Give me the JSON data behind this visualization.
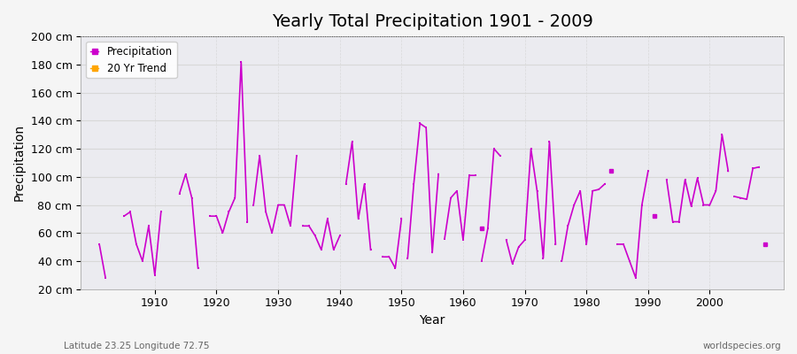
{
  "title": "Yearly Total Precipitation 1901 - 2009",
  "xlabel": "Year",
  "ylabel": "Precipitation",
  "subtitle": "Latitude 23.25 Longitude 72.75",
  "watermark": "worldspecies.org",
  "years": [
    1901,
    1902,
    1903,
    1904,
    1905,
    1906,
    1907,
    1908,
    1909,
    1910,
    1911,
    1912,
    1913,
    1914,
    1915,
    1916,
    1917,
    1918,
    1919,
    1920,
    1921,
    1922,
    1923,
    1924,
    1925,
    1926,
    1927,
    1928,
    1929,
    1930,
    1931,
    1932,
    1933,
    1934,
    1935,
    1936,
    1937,
    1938,
    1939,
    1940,
    1941,
    1942,
    1943,
    1944,
    1945,
    1946,
    1947,
    1948,
    1949,
    1950,
    1951,
    1952,
    1953,
    1954,
    1955,
    1956,
    1957,
    1958,
    1959,
    1960,
    1961,
    1962,
    1963,
    1964,
    1965,
    1966,
    1967,
    1968,
    1969,
    1970,
    1971,
    1972,
    1973,
    1974,
    1975,
    1976,
    1977,
    1978,
    1979,
    1980,
    1981,
    1982,
    1983,
    1984,
    1985,
    1986,
    1987,
    1988,
    1989,
    1990,
    1991,
    1992,
    1993,
    1994,
    1995,
    1996,
    1997,
    1998,
    1999,
    2000,
    2001,
    2002,
    2003,
    2004,
    2005,
    2006,
    2007,
    2008,
    2009
  ],
  "precip": [
    52,
    null,
    null,
    null,
    null,
    null,
    null,
    null,
    null,
    null,
    75,
    null,
    null,
    null,
    102,
    null,
    null,
    null,
    null,
    null,
    null,
    null,
    null,
    182,
    null,
    null,
    null,
    null,
    null,
    null,
    null,
    null,
    115,
    null,
    null,
    null,
    null,
    null,
    null,
    null,
    null,
    125,
    null,
    null,
    47,
    null,
    null,
    null,
    null,
    null,
    null,
    null,
    138,
    135,
    null,
    null,
    null,
    null,
    null,
    null,
    101,
    null,
    null,
    null,
    null,
    null,
    null,
    null,
    null,
    null,
    null,
    null,
    125,
    null,
    null,
    null,
    null,
    null,
    null,
    null,
    null,
    null,
    104,
    null,
    null,
    null,
    null,
    null,
    null,
    null,
    null,
    null,
    null,
    null,
    null,
    null,
    null,
    null,
    null,
    null,
    null,
    130,
    null,
    null,
    null,
    null,
    107,
    null,
    null,
    52
  ],
  "precip_connected": [
    [
      1901,
      52
    ],
    [
      1902,
      null
    ],
    [
      1903,
      null
    ],
    [
      1904,
      null
    ],
    [
      1905,
      72
    ],
    [
      1906,
      75
    ],
    [
      1907,
      null
    ],
    [
      1908,
      null
    ],
    [
      1909,
      null
    ],
    [
      1910,
      30
    ],
    [
      1911,
      75
    ],
    [
      1912,
      null
    ],
    [
      1913,
      null
    ],
    [
      1914,
      null
    ],
    [
      1915,
      102
    ],
    [
      1916,
      85
    ],
    [
      1917,
      null
    ],
    [
      1918,
      null
    ],
    [
      1919,
      null
    ],
    [
      1920,
      null
    ],
    [
      1921,
      null
    ],
    [
      1922,
      null
    ],
    [
      1923,
      85
    ],
    [
      1924,
      182
    ],
    [
      1925,
      null
    ],
    [
      1926,
      80
    ],
    [
      1927,
      null
    ],
    [
      1928,
      75
    ],
    [
      1929,
      null
    ],
    [
      1930,
      80
    ],
    [
      1931,
      80
    ],
    [
      1932,
      115
    ],
    [
      1933,
      65
    ],
    [
      1934,
      null
    ],
    [
      1935,
      58
    ],
    [
      1936,
      null
    ],
    [
      1937,
      null
    ],
    [
      1938,
      null
    ],
    [
      1939,
      null
    ],
    [
      1940,
      null
    ],
    [
      1941,
      125
    ],
    [
      1942,
      null
    ],
    [
      1943,
      null
    ],
    [
      1944,
      47
    ],
    [
      1945,
      null
    ],
    [
      1946,
      null
    ],
    [
      1947,
      null
    ],
    [
      1948,
      null
    ],
    [
      1949,
      null
    ],
    [
      1950,
      null
    ],
    [
      1951,
      null
    ],
    [
      1952,
      138
    ],
    [
      1953,
      135
    ],
    [
      1954,
      null
    ],
    [
      1955,
      102
    ],
    [
      1956,
      null
    ],
    [
      1957,
      null
    ],
    [
      1958,
      null
    ],
    [
      1959,
      null
    ],
    [
      1960,
      101
    ],
    [
      1961,
      null
    ],
    [
      1962,
      null
    ],
    [
      1963,
      null
    ],
    [
      1964,
      null
    ],
    [
      1965,
      null
    ],
    [
      1966,
      null
    ],
    [
      1967,
      null
    ],
    [
      1968,
      null
    ],
    [
      1969,
      null
    ],
    [
      1970,
      120
    ],
    [
      1971,
      null
    ],
    [
      1972,
      null
    ],
    [
      1973,
      125
    ],
    [
      1974,
      null
    ],
    [
      1975,
      null
    ],
    [
      1976,
      null
    ],
    [
      1977,
      null
    ],
    [
      1978,
      null
    ],
    [
      1979,
      null
    ],
    [
      1980,
      null
    ],
    [
      1981,
      90
    ],
    [
      1982,
      null
    ],
    [
      1983,
      104
    ],
    [
      1984,
      null
    ],
    [
      1985,
      null
    ],
    [
      1986,
      null
    ],
    [
      1987,
      null
    ],
    [
      1988,
      28
    ],
    [
      1989,
      null
    ],
    [
      1990,
      null
    ],
    [
      1991,
      null
    ],
    [
      1992,
      null
    ],
    [
      1993,
      null
    ],
    [
      1994,
      null
    ],
    [
      1995,
      null
    ],
    [
      1996,
      null
    ],
    [
      1997,
      null
    ],
    [
      1998,
      null
    ],
    [
      1999,
      null
    ],
    [
      2000,
      null
    ],
    [
      2001,
      130
    ],
    [
      2002,
      null
    ],
    [
      2003,
      null
    ],
    [
      2004,
      null
    ],
    [
      2005,
      null
    ],
    [
      2006,
      107
    ],
    [
      2007,
      null
    ],
    [
      2008,
      null
    ],
    [
      2009,
      52
    ]
  ],
  "segments": [
    {
      "years": [
        1901,
        1902
      ],
      "vals": [
        52,
        28
      ]
    },
    {
      "years": [
        1905,
        1906,
        1907,
        1908,
        1909,
        1910,
        1911
      ],
      "vals": [
        72,
        75,
        52,
        40,
        65,
        30,
        75
      ]
    },
    {
      "years": [
        1914,
        1915,
        1916,
        1917
      ],
      "vals": [
        88,
        102,
        85,
        35
      ]
    },
    {
      "years": [
        1919,
        1920,
        1921,
        1922,
        1923,
        1924,
        1925
      ],
      "vals": [
        72,
        72,
        60,
        75,
        85,
        182,
        68
      ]
    },
    {
      "years": [
        1926,
        1927,
        1928,
        1929,
        1930,
        1931,
        1932,
        1933
      ],
      "vals": [
        80,
        115,
        75,
        60,
        80,
        80,
        65,
        115
      ]
    },
    {
      "years": [
        1934,
        1935,
        1936,
        1937,
        1938,
        1939,
        1940
      ],
      "vals": [
        65,
        65,
        58,
        48,
        70,
        48,
        58
      ]
    },
    {
      "years": [
        1941,
        1942,
        1943,
        1944,
        1945
      ],
      "vals": [
        95,
        125,
        70,
        95,
        48
      ]
    },
    {
      "years": [
        1947,
        1948,
        1949,
        1950
      ],
      "vals": [
        43,
        43,
        35,
        70
      ]
    },
    {
      "years": [
        1951,
        1952,
        1953,
        1954,
        1955,
        1956
      ],
      "vals": [
        42,
        95,
        138,
        135,
        46,
        102
      ]
    },
    {
      "years": [
        1957,
        1958,
        1959,
        1960,
        1961,
        1962
      ],
      "vals": [
        56,
        85,
        90,
        55,
        101,
        101
      ]
    },
    {
      "years": [
        1963,
        1964,
        1965,
        1966
      ],
      "vals": [
        40,
        63,
        120,
        115
      ]
    },
    {
      "years": [
        1967,
        1968,
        1969,
        1970,
        1971,
        1972,
        1973,
        1974,
        1975
      ],
      "vals": [
        55,
        38,
        50,
        55,
        120,
        90,
        42,
        125,
        52
      ]
    },
    {
      "years": [
        1976,
        1977,
        1978,
        1979,
        1980,
        1981,
        1982,
        1983
      ],
      "vals": [
        40,
        65,
        80,
        90,
        52,
        90,
        91,
        95
      ]
    },
    {
      "years": [
        1985,
        1986,
        1987,
        1988,
        1989,
        1990
      ],
      "vals": [
        52,
        52,
        40,
        28,
        80,
        104
      ]
    },
    {
      "years": [
        1993,
        1994,
        1995,
        1996,
        1997,
        1998,
        1999,
        2000,
        2001,
        2002,
        2003
      ],
      "vals": [
        98,
        68,
        68,
        98,
        79,
        99,
        80,
        80,
        90,
        130,
        104
      ]
    },
    {
      "years": [
        2004,
        2005,
        2006,
        2007,
        2008
      ],
      "vals": [
        86,
        85,
        84,
        106,
        107
      ]
    },
    {
      "years": [
        2009
      ],
      "vals": [
        52
      ]
    }
  ],
  "isolated_points": [
    {
      "year": 1963,
      "val": 63
    },
    {
      "year": 1984,
      "val": 104
    },
    {
      "year": 1991,
      "val": 72
    }
  ],
  "precip_color": "#cc00cc",
  "trend_color": "#FFA500",
  "bg_color": "#f5f5f5",
  "plot_bg": "#ebebf0",
  "grid_color_h": "#dddddd",
  "grid_color_v": "#cccccc",
  "ylim": [
    20,
    200
  ],
  "yticks": [
    20,
    40,
    60,
    80,
    100,
    120,
    140,
    160,
    180,
    200
  ],
  "ytick_labels": [
    "20 cm",
    "40 cm",
    "60 cm",
    "80 cm",
    "100 cm",
    "120 cm",
    "140 cm",
    "160 cm",
    "180 cm",
    "200 cm"
  ],
  "xticks": [
    1910,
    1920,
    1930,
    1940,
    1950,
    1960,
    1970,
    1980,
    1990,
    2000
  ],
  "xlim": [
    1898,
    2012
  ],
  "title_fontsize": 14,
  "label_fontsize": 10,
  "tick_fontsize": 9
}
